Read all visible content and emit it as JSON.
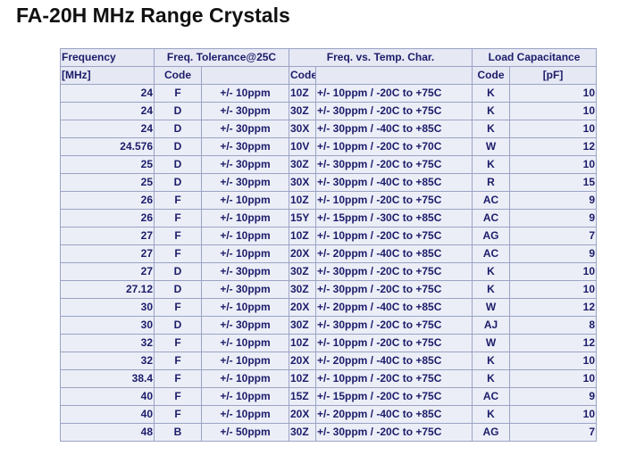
{
  "header": {
    "title": "FA-20H MHz Range Crystals"
  },
  "table": {
    "groups": [
      "Frequency",
      "Freq. Tolerance@25C",
      "Freq. vs. Temp. Char.",
      "Load Capacitance"
    ],
    "subheaders": [
      "[MHz]",
      "Code",
      "Code",
      "Code",
      "[pF]"
    ],
    "rows": [
      [
        24,
        "F",
        "+/- 10ppm",
        "10Z",
        "+/- 10ppm / -20C to +75C",
        "K",
        10
      ],
      [
        24,
        "D",
        "+/- 30ppm",
        "30Z",
        "+/- 30ppm / -20C to +75C",
        "K",
        10
      ],
      [
        24,
        "D",
        "+/- 30ppm",
        "30X",
        "+/- 30ppm / -40C to +85C",
        "K",
        10
      ],
      [
        24.576,
        "D",
        "+/- 30ppm",
        "10V",
        "+/- 10ppm / -20C to +70C",
        "W",
        12
      ],
      [
        25,
        "D",
        "+/- 30ppm",
        "30Z",
        "+/- 30ppm / -20C to +75C",
        "K",
        10
      ],
      [
        25,
        "D",
        "+/- 30ppm",
        "30X",
        "+/- 30ppm / -40C to +85C",
        "R",
        15
      ],
      [
        26,
        "F",
        "+/- 10ppm",
        "10Z",
        "+/- 10ppm / -20C to +75C",
        "AC",
        9
      ],
      [
        26,
        "F",
        "+/- 10ppm",
        "15Y",
        "+/- 15ppm / -30C to +85C",
        "AC",
        9
      ],
      [
        27,
        "F",
        "+/- 10ppm",
        "10Z",
        "+/- 10ppm / -20C to +75C",
        "AG",
        7
      ],
      [
        27,
        "F",
        "+/- 10ppm",
        "20X",
        "+/- 20ppm / -40C to +85C",
        "AC",
        9
      ],
      [
        27,
        "D",
        "+/- 30ppm",
        "30Z",
        "+/- 30ppm / -20C to +75C",
        "K",
        10
      ],
      [
        27.12,
        "D",
        "+/- 30ppm",
        "30Z",
        "+/- 30ppm / -20C to +75C",
        "K",
        10
      ],
      [
        30,
        "F",
        "+/- 10ppm",
        "20X",
        "+/- 20ppm / -40C to +85C",
        "W",
        12
      ],
      [
        30,
        "D",
        "+/- 30ppm",
        "30Z",
        "+/- 30ppm / -20C to +75C",
        "AJ",
        8
      ],
      [
        32,
        "F",
        "+/- 10ppm",
        "10Z",
        "+/- 10ppm / -20C to +75C",
        "W",
        12
      ],
      [
        32,
        "F",
        "+/- 10ppm",
        "20X",
        "+/- 20ppm / -40C to +85C",
        "K",
        10
      ],
      [
        38.4,
        "F",
        "+/- 10ppm",
        "10Z",
        "+/- 10ppm / -20C to +75C",
        "K",
        10
      ],
      [
        40,
        "F",
        "+/- 10ppm",
        "15Z",
        "+/- 15ppm / -20C to +75C",
        "AC",
        9
      ],
      [
        40,
        "F",
        "+/- 10ppm",
        "20X",
        "+/- 20ppm / -40C to +85C",
        "K",
        10
      ],
      [
        48,
        "B",
        "+/- 50ppm",
        "30Z",
        "+/- 30ppm / -20C to +75C",
        "AG",
        7
      ]
    ]
  }
}
